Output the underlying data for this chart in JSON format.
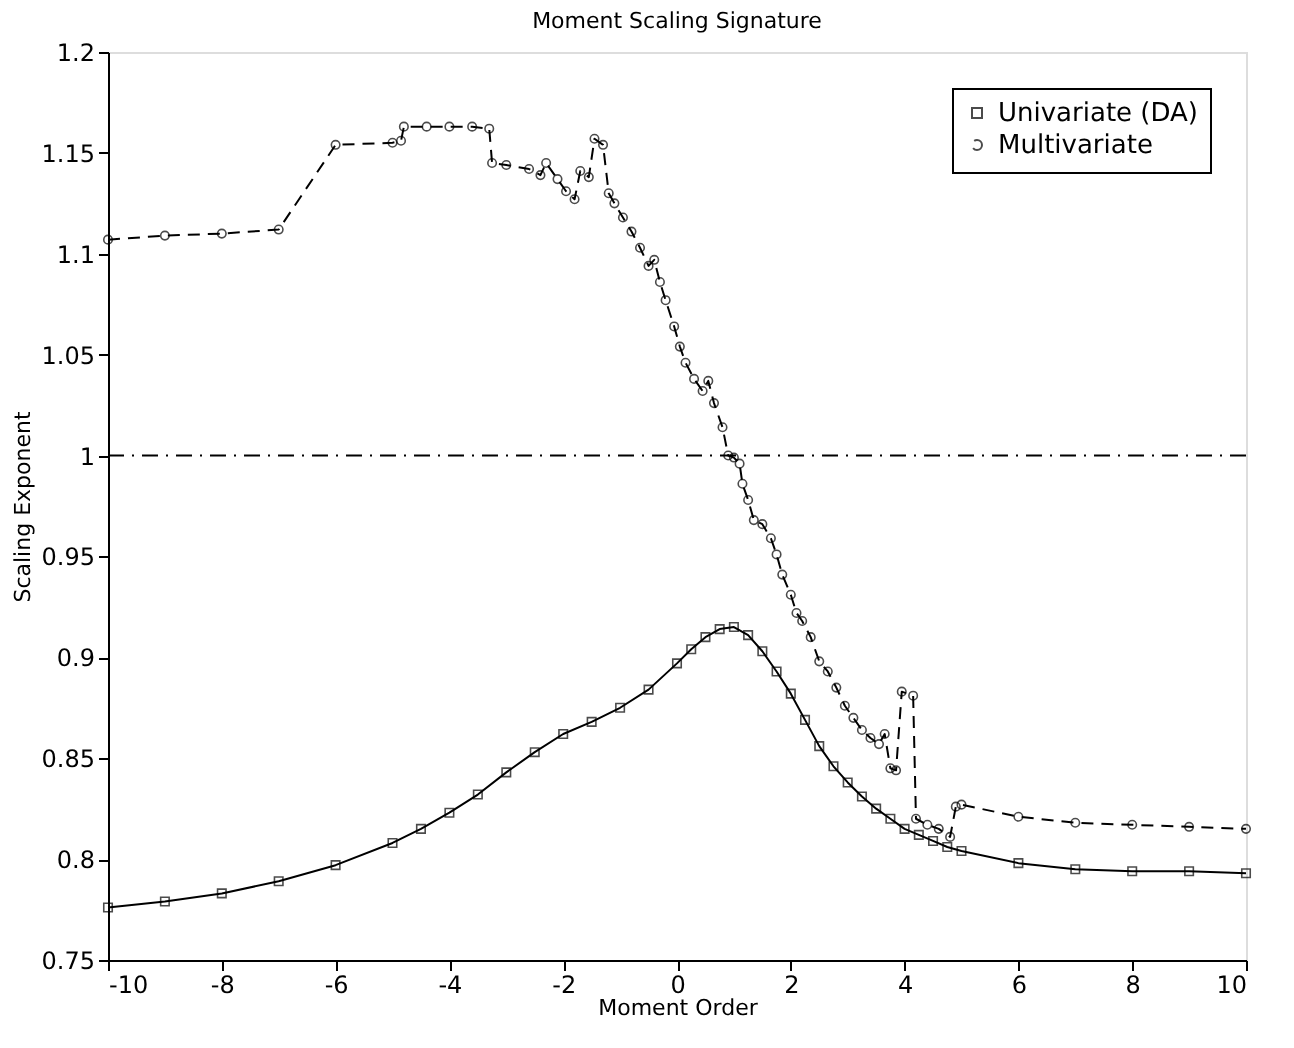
{
  "chart_data": {
    "type": "line",
    "title": "Moment Scaling Signature",
    "xlabel": "Moment Order",
    "ylabel": "Scaling Exponent",
    "xlim": [
      -10,
      10
    ],
    "xticks": [
      -10,
      -8,
      -6,
      -4,
      -2,
      0,
      2,
      4,
      6,
      8,
      10
    ],
    "ylim": [
      0.75,
      1.2
    ],
    "yticks": [
      0.75,
      0.8,
      0.85,
      0.9,
      0.95,
      1,
      1.05,
      1.1,
      1.15,
      1.2
    ],
    "grid": false,
    "legend": "top right",
    "ref_lines": [
      {
        "axis": "y",
        "value": 1,
        "line_style": "dashdot",
        "color": "#000000"
      }
    ],
    "series": [
      {
        "name": "Univariate (DA)",
        "color": "#000000",
        "marker": "square",
        "line_style": "solid",
        "x": [
          -10,
          -9,
          -8,
          -7,
          -6,
          -5,
          -4.5,
          -4,
          -3.5,
          -3,
          -2.5,
          -2,
          -1.5,
          -1,
          -0.5,
          0,
          0.25,
          0.5,
          0.75,
          1,
          1.25,
          1.5,
          1.75,
          2,
          2.25,
          2.5,
          2.75,
          3,
          3.25,
          3.5,
          3.75,
          4,
          4.25,
          4.5,
          4.75,
          5,
          6,
          7,
          8,
          9,
          10
        ],
        "values": [
          0.776,
          0.779,
          0.783,
          0.789,
          0.797,
          0.808,
          0.815,
          0.823,
          0.832,
          0.843,
          0.853,
          0.862,
          0.868,
          0.875,
          0.884,
          0.897,
          0.904,
          0.91,
          0.914,
          0.915,
          0.911,
          0.903,
          0.893,
          0.882,
          0.869,
          0.856,
          0.846,
          0.838,
          0.831,
          0.825,
          0.82,
          0.815,
          0.812,
          0.809,
          0.806,
          0.804,
          0.798,
          0.795,
          0.794,
          0.794,
          0.793
        ]
      },
      {
        "name": "Multivariate",
        "color": "#000000",
        "marker": "circle",
        "line_style": "dashed",
        "x": [
          -10,
          -9,
          -8,
          -7,
          -6,
          -5,
          -4.85,
          -4.8,
          -4.4,
          -4,
          -3.6,
          -3.3,
          -3.25,
          -3,
          -2.6,
          -2.4,
          -2.3,
          -2.1,
          -1.95,
          -1.8,
          -1.7,
          -1.55,
          -1.45,
          -1.3,
          -1.2,
          -1.1,
          -0.95,
          -0.8,
          -0.65,
          -0.5,
          -0.4,
          -0.3,
          -0.2,
          -0.05,
          0.05,
          0.15,
          0.3,
          0.45,
          0.55,
          0.65,
          0.8,
          0.9,
          1.0,
          1.1,
          1.15,
          1.25,
          1.35,
          1.5,
          1.65,
          1.75,
          1.85,
          2.0,
          2.1,
          2.2,
          2.35,
          2.5,
          2.65,
          2.8,
          2.95,
          3.1,
          3.25,
          3.4,
          3.55,
          3.65,
          3.75,
          3.85,
          3.95,
          4.15,
          4.2,
          4.4,
          4.6,
          4.8,
          4.9,
          5,
          6,
          7,
          8,
          9,
          10
        ],
        "values": [
          1.107,
          1.109,
          1.11,
          1.112,
          1.154,
          1.155,
          1.156,
          1.163,
          1.163,
          1.163,
          1.163,
          1.162,
          1.145,
          1.144,
          1.142,
          1.139,
          1.145,
          1.137,
          1.131,
          1.127,
          1.141,
          1.138,
          1.157,
          1.154,
          1.13,
          1.125,
          1.118,
          1.111,
          1.103,
          1.094,
          1.097,
          1.086,
          1.077,
          1.064,
          1.054,
          1.046,
          1.038,
          1.032,
          1.037,
          1.026,
          1.014,
          1.0,
          0.999,
          0.996,
          0.986,
          0.978,
          0.968,
          0.966,
          0.959,
          0.951,
          0.941,
          0.931,
          0.922,
          0.918,
          0.91,
          0.898,
          0.893,
          0.885,
          0.876,
          0.87,
          0.864,
          0.86,
          0.857,
          0.862,
          0.845,
          0.844,
          0.883,
          0.881,
          0.82,
          0.817,
          0.815,
          0.811,
          0.826,
          0.827,
          0.821,
          0.818,
          0.817,
          0.816,
          0.815
        ]
      }
    ]
  }
}
